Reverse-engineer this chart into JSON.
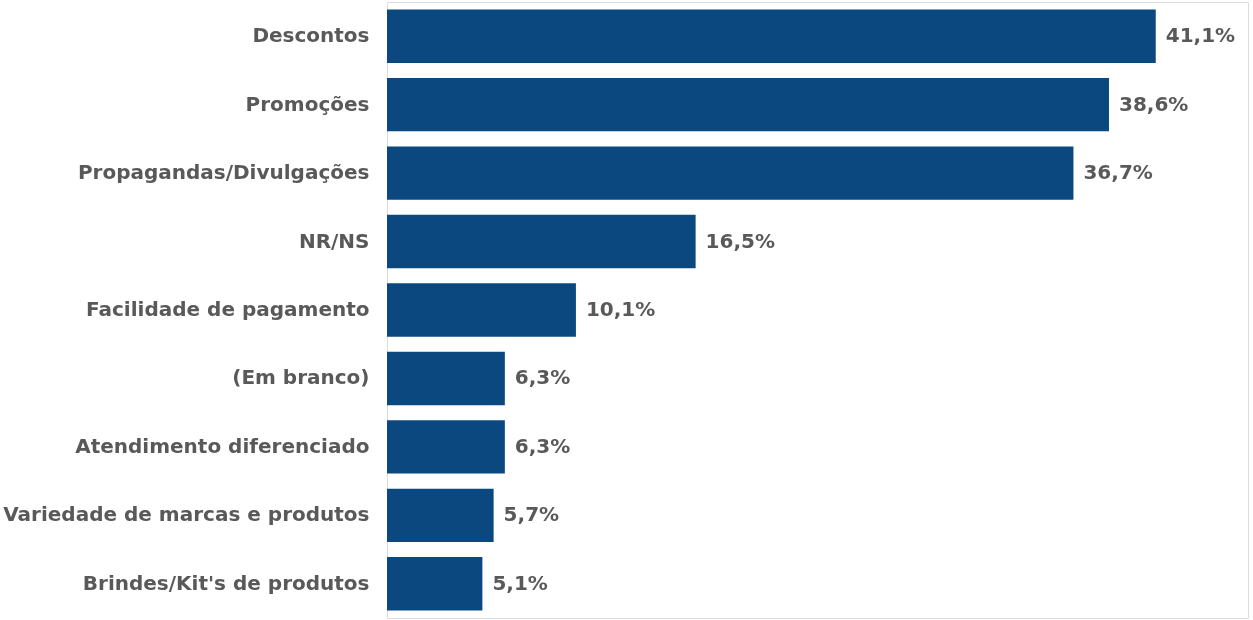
{
  "chart_data": {
    "type": "bar",
    "orientation": "horizontal",
    "categories": [
      "Descontos",
      "Promoções",
      "Propagandas/Divulgações",
      "NR/NS",
      "Facilidade de pagamento",
      "(Em branco)",
      "Atendimento diferenciado",
      "Variedade de marcas e produtos",
      "Brindes/Kit's de produtos"
    ],
    "values": [
      41.1,
      38.6,
      36.7,
      16.5,
      10.1,
      6.3,
      6.3,
      5.7,
      5.1
    ],
    "value_labels": [
      "41,1%",
      "38,6%",
      "36,7%",
      "16,5%",
      "10,1%",
      "6,3%",
      "6,3%",
      "5,7%",
      "5,1%"
    ],
    "color": "#0b4880"
  }
}
